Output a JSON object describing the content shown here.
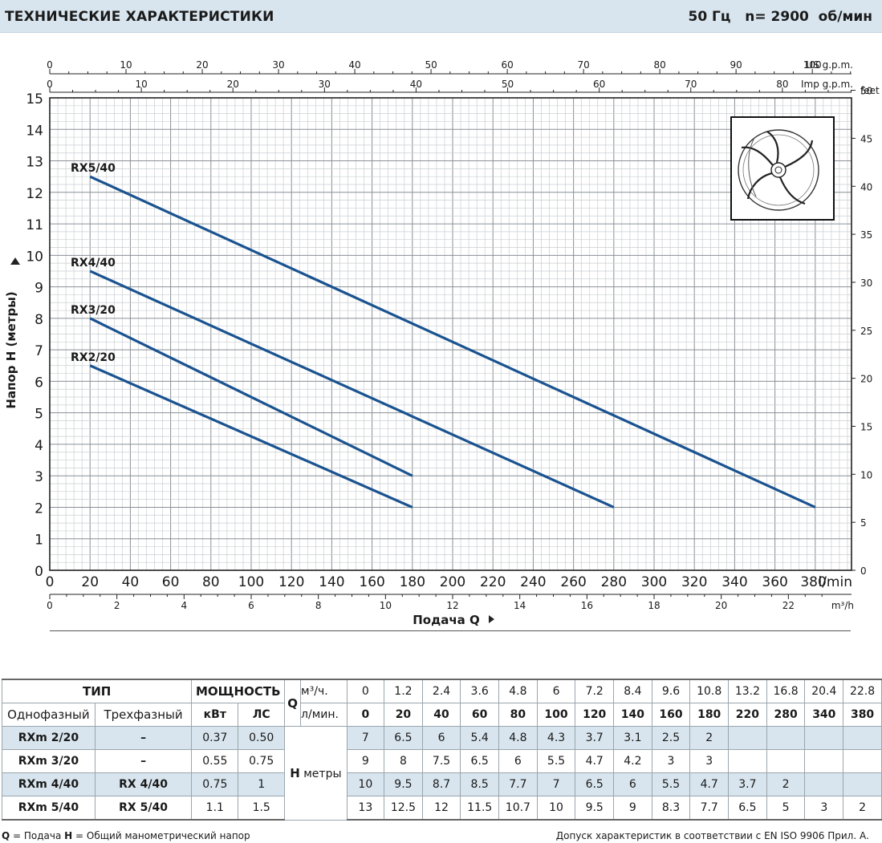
{
  "header": {
    "title": "ТЕХНИЧЕСКИЕ ХАРАКТЕРИСТИКИ",
    "freq": "50 Гц",
    "speed": "n= 2900  об/мин"
  },
  "chart_data": {
    "type": "line",
    "ylabel": "Напор H  (метры)",
    "xlabel": "Подача  Q",
    "y_axis_primary": {
      "unit": "",
      "ticks": [
        0,
        1,
        2,
        3,
        4,
        5,
        6,
        7,
        8,
        9,
        10,
        11,
        12,
        13,
        14,
        15
      ],
      "ylim": [
        0,
        15
      ]
    },
    "y_axis_secondary": {
      "unit": "feet",
      "ticks": [
        0,
        5,
        10,
        15,
        20,
        25,
        30,
        35,
        40,
        45,
        50
      ]
    },
    "x_axis_primary": {
      "unit": "l/min",
      "ticks": [
        0,
        20,
        40,
        60,
        80,
        100,
        120,
        140,
        160,
        180,
        200,
        220,
        240,
        260,
        280,
        300,
        320,
        340,
        360,
        380
      ],
      "xlim": [
        0,
        398
      ]
    },
    "x_axis_m3h": {
      "unit": "m³/h",
      "ticks": [
        0,
        2,
        4,
        6,
        8,
        10,
        12,
        14,
        16,
        18,
        20,
        22
      ]
    },
    "x_axis_us": {
      "unit": "US g.p.m.",
      "ticks": [
        0,
        10,
        20,
        30,
        40,
        50,
        60,
        70,
        80,
        90,
        100
      ]
    },
    "x_axis_imp": {
      "unit": "Imp g.p.m.",
      "ticks": [
        0,
        10,
        20,
        30,
        40,
        50,
        60,
        70,
        80
      ]
    },
    "grid": true,
    "series": [
      {
        "name": "RX5/40",
        "x": [
          20,
          380
        ],
        "y": [
          12.5,
          2
        ]
      },
      {
        "name": "RX4/40",
        "x": [
          20,
          280
        ],
        "y": [
          9.5,
          2
        ]
      },
      {
        "name": "RX3/20",
        "x": [
          20,
          180
        ],
        "y": [
          8,
          3
        ]
      },
      {
        "name": "RX2/20",
        "x": [
          20,
          180
        ],
        "y": [
          6.5,
          2
        ]
      }
    ],
    "line_color": "#1a5390",
    "grid_color": "#9aa0a6",
    "impeller_icon": "vortex-impeller-icon"
  },
  "table": {
    "type_header": "ТИП",
    "power_header": "МОЩНОСТЬ",
    "single_phase": "Однофазный",
    "three_phase": "Трехфазный",
    "kw": "кВт",
    "hp": "ЛС",
    "q_label": "Q",
    "q_m3": "м³/ч.",
    "q_lmin": "л/мин.",
    "h_label": "H",
    "h_unit": "метры",
    "q_m3_values": [
      "0",
      "1.2",
      "2.4",
      "3.6",
      "4.8",
      "6",
      "7.2",
      "8.4",
      "9.6",
      "10.8",
      "13.2",
      "16.8",
      "20.4",
      "22.8"
    ],
    "q_lmin_values": [
      "0",
      "20",
      "40",
      "60",
      "80",
      "100",
      "120",
      "140",
      "160",
      "180",
      "220",
      "280",
      "340",
      "380"
    ],
    "rows": [
      {
        "single": "RXm 2/20",
        "three": "–",
        "kw": "0.37",
        "hp": "0.50",
        "h": [
          "7",
          "6.5",
          "6",
          "5.4",
          "4.8",
          "4.3",
          "3.7",
          "3.1",
          "2.5",
          "2",
          "",
          "",
          "",
          ""
        ]
      },
      {
        "single": "RXm 3/20",
        "three": "–",
        "kw": "0.55",
        "hp": "0.75",
        "h": [
          "9",
          "8",
          "7.5",
          "6.5",
          "6",
          "5.5",
          "4.7",
          "4.2",
          "3",
          "3",
          "",
          "",
          "",
          ""
        ]
      },
      {
        "single": "RXm 4/40",
        "three": "RX 4/40",
        "kw": "0.75",
        "hp": "1",
        "h": [
          "10",
          "9.5",
          "8.7",
          "8.5",
          "7.7",
          "7",
          "6.5",
          "6",
          "5.5",
          "4.7",
          "3.7",
          "2",
          "",
          ""
        ]
      },
      {
        "single": "RXm 5/40",
        "three": "RX 5/40",
        "kw": "1.1",
        "hp": "1.5",
        "h": [
          "13",
          "12.5",
          "12",
          "11.5",
          "10.7",
          "10",
          "9.5",
          "9",
          "8.3",
          "7.7",
          "6.5",
          "5",
          "3",
          "2"
        ]
      }
    ]
  },
  "footer": {
    "q_key": "Q",
    "q_desc": " = Подача   ",
    "h_key": "H",
    "h_desc": " = Общий манометрический напор",
    "tolerance": "Допуск характеристик в соответствии с EN ISO 9906 Прил. А."
  }
}
